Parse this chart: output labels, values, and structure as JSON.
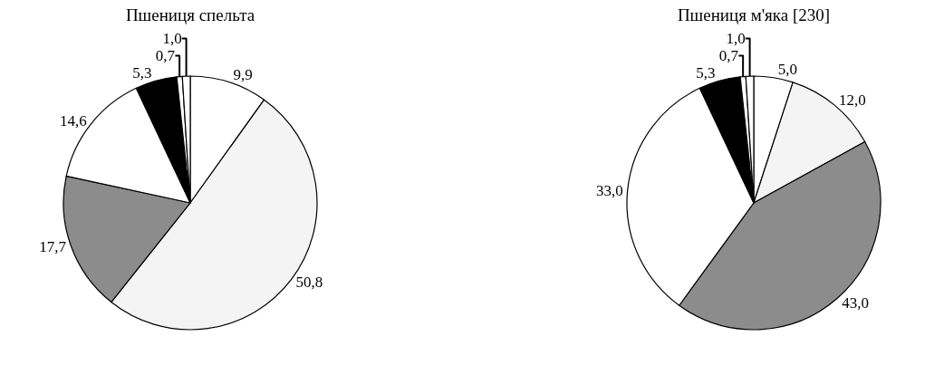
{
  "chart_data": [
    {
      "type": "pie",
      "title": "Пшениця спельта",
      "categories": [
        null,
        null,
        null,
        null,
        null,
        null,
        null
      ],
      "values": [
        9.9,
        50.8,
        17.7,
        14.6,
        5.3,
        0.7,
        1.0
      ],
      "value_labels": [
        "9,9",
        "50,8",
        "17,7",
        "14,6",
        "5,3",
        "0,7",
        "1,0"
      ],
      "colors": [
        "#ffffff",
        "#f4f4f4",
        "#8c8c8c",
        "#ffffff",
        "#000000",
        "#ffffff",
        "#ffffff"
      ],
      "legend": false
    },
    {
      "type": "pie",
      "title": "Пшениця м'яка [230]",
      "categories": [
        null,
        null,
        null,
        null,
        null,
        null,
        null
      ],
      "values": [
        5.0,
        12.0,
        43.0,
        33.0,
        5.3,
        0.7,
        1.0
      ],
      "value_labels": [
        "5,0",
        "12,0",
        "43,0",
        "33,0",
        "5,3",
        "0,7",
        "1,0"
      ],
      "colors": [
        "#ffffff",
        "#f4f4f4",
        "#8c8c8c",
        "#ffffff",
        "#000000",
        "#ffffff",
        "#ffffff"
      ],
      "legend": false
    }
  ]
}
